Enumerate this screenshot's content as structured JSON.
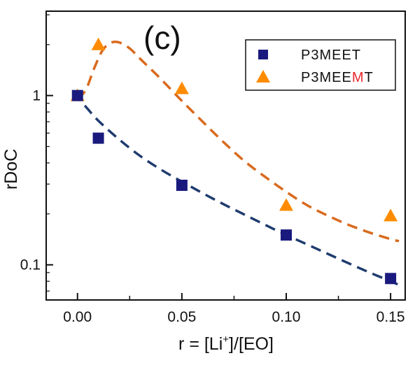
{
  "chart_data": {
    "type": "scatter",
    "panel_label": "(c)",
    "xlabel": {
      "prefix": "r = [Li",
      "sup": "+",
      "suffix": "]/[EO]"
    },
    "ylabel": "rDoC",
    "xlim": [
      -0.015,
      0.157
    ],
    "ylim": [
      0.062,
      3.15
    ],
    "yscale": "log",
    "x_ticks": [
      0.0,
      0.05,
      0.1,
      0.15
    ],
    "x_tick_labels": [
      "0.00",
      "0.05",
      "0.10",
      "0.15"
    ],
    "y_ticks": [
      0.1,
      1
    ],
    "y_tick_labels": [
      "0.1",
      "1"
    ],
    "legend_position": "top-right",
    "series": [
      {
        "name": "P3MEET",
        "name_parts": [
          {
            "text": "P3MEET",
            "color": "#111111"
          }
        ],
        "marker": "square",
        "color": "#1a1a7e",
        "x": [
          0.0,
          0.01,
          0.05,
          0.1,
          0.15
        ],
        "y": [
          1.0,
          0.56,
          0.295,
          0.15,
          0.083
        ],
        "fit": {
          "color": "#1f3c6e",
          "x": [
            -0.002,
            0.0,
            0.005,
            0.01,
            0.02,
            0.03,
            0.04,
            0.05,
            0.06,
            0.07,
            0.08,
            0.09,
            0.1,
            0.11,
            0.12,
            0.13,
            0.14,
            0.15,
            0.154
          ],
          "y": [
            1.03,
            0.98,
            0.83,
            0.71,
            0.55,
            0.44,
            0.365,
            0.31,
            0.265,
            0.228,
            0.198,
            0.172,
            0.15,
            0.132,
            0.116,
            0.102,
            0.09,
            0.08,
            0.076
          ]
        }
      },
      {
        "name": "P3MEEMT",
        "name_parts": [
          {
            "text": "P3MEE",
            "color": "#111111"
          },
          {
            "text": "M",
            "color": "#e8262c"
          },
          {
            "text": "T",
            "color": "#111111"
          }
        ],
        "marker": "triangle",
        "color": "#ff8c00",
        "x": [
          0.0,
          0.01,
          0.05,
          0.1,
          0.15
        ],
        "y": [
          1.0,
          2.0,
          1.1,
          0.225,
          0.195
        ],
        "fit": {
          "color": "#d96a1e",
          "x": [
            0.0,
            0.004,
            0.008,
            0.012,
            0.016,
            0.02,
            0.025,
            0.03,
            0.04,
            0.05,
            0.06,
            0.07,
            0.08,
            0.09,
            0.1,
            0.11,
            0.12,
            0.13,
            0.14,
            0.15,
            0.154
          ],
          "y": [
            0.96,
            1.08,
            1.45,
            1.85,
            2.05,
            2.06,
            1.9,
            1.65,
            1.25,
            0.93,
            0.7,
            0.53,
            0.41,
            0.33,
            0.27,
            0.225,
            0.195,
            0.172,
            0.155,
            0.142,
            0.138
          ]
        }
      }
    ]
  }
}
